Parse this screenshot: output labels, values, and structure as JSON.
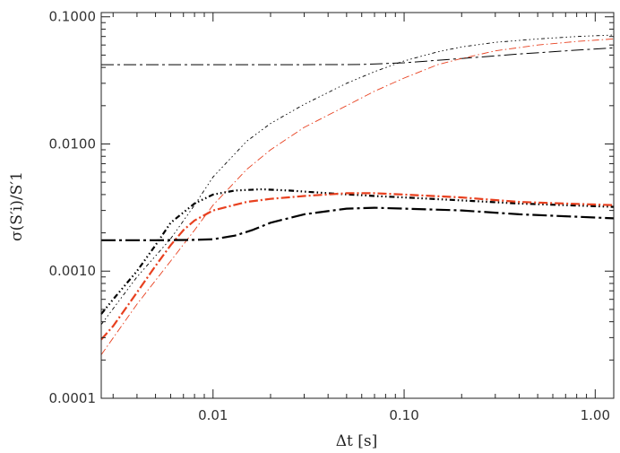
{
  "chart_data": {
    "type": "line",
    "title": "",
    "xlabel": "Δt [s]",
    "ylabel": "σ(S′i)/S′1",
    "xscale": "log",
    "yscale": "log",
    "xlim": [
      0.0026,
      1.25
    ],
    "ylim": [
      0.0001,
      0.108
    ],
    "grid": false,
    "legend": "none",
    "x_ticks": [
      {
        "value": 0.01,
        "label": "0.01"
      },
      {
        "value": 0.1,
        "label": "0.10"
      },
      {
        "value": 1.0,
        "label": "1.00"
      }
    ],
    "y_ticks": [
      {
        "value": 0.0001,
        "label": "0.0001"
      },
      {
        "value": 0.001,
        "label": "0.0010"
      },
      {
        "value": 0.01,
        "label": "0.0100"
      },
      {
        "value": 0.1,
        "label": "0.1000"
      }
    ],
    "series": [
      {
        "color": "#000000",
        "width": 1.0,
        "dash": "14 4 3 4",
        "points": [
          [
            0.0026,
            0.042
          ],
          [
            0.01,
            0.042
          ],
          [
            0.03,
            0.042
          ],
          [
            0.06,
            0.0422
          ],
          [
            0.1,
            0.0435
          ],
          [
            0.2,
            0.047
          ],
          [
            0.4,
            0.051
          ],
          [
            0.7,
            0.054
          ],
          [
            1.25,
            0.057
          ]
        ]
      },
      {
        "color": "#000000",
        "width": 0.9,
        "dash": "4 3 1.5 3 1.5 3 1.5 3",
        "points": [
          [
            0.0026,
            0.00038
          ],
          [
            0.004,
            0.0009
          ],
          [
            0.006,
            0.0018
          ],
          [
            0.008,
            0.0033
          ],
          [
            0.01,
            0.0055
          ],
          [
            0.015,
            0.0105
          ],
          [
            0.02,
            0.0145
          ],
          [
            0.03,
            0.0205
          ],
          [
            0.05,
            0.03
          ],
          [
            0.07,
            0.037
          ],
          [
            0.1,
            0.045
          ],
          [
            0.15,
            0.053
          ],
          [
            0.2,
            0.058
          ],
          [
            0.3,
            0.063
          ],
          [
            0.5,
            0.067
          ],
          [
            0.8,
            0.07
          ],
          [
            1.25,
            0.072
          ]
        ]
      },
      {
        "color": "#e8401f",
        "width": 0.9,
        "dash": "8 3 1.5 3",
        "points": [
          [
            0.0026,
            0.00022
          ],
          [
            0.004,
            0.00055
          ],
          [
            0.006,
            0.0012
          ],
          [
            0.008,
            0.0021
          ],
          [
            0.01,
            0.0033
          ],
          [
            0.015,
            0.0063
          ],
          [
            0.02,
            0.009
          ],
          [
            0.03,
            0.0135
          ],
          [
            0.05,
            0.02
          ],
          [
            0.07,
            0.026
          ],
          [
            0.1,
            0.033
          ],
          [
            0.15,
            0.042
          ],
          [
            0.2,
            0.047
          ],
          [
            0.3,
            0.054
          ],
          [
            0.5,
            0.06
          ],
          [
            0.8,
            0.064
          ],
          [
            1.25,
            0.067
          ]
        ]
      },
      {
        "color": "#000000",
        "width": 2.2,
        "dash": "6 3 1.5 3 1.5 3 1.5 3",
        "points": [
          [
            0.0026,
            0.00046
          ],
          [
            0.003,
            0.0006
          ],
          [
            0.004,
            0.001
          ],
          [
            0.005,
            0.0016
          ],
          [
            0.006,
            0.0024
          ],
          [
            0.008,
            0.0034
          ],
          [
            0.01,
            0.004
          ],
          [
            0.013,
            0.0043
          ],
          [
            0.018,
            0.0044
          ],
          [
            0.025,
            0.0043
          ],
          [
            0.04,
            0.0041
          ],
          [
            0.07,
            0.0039
          ],
          [
            0.1,
            0.0038
          ],
          [
            0.2,
            0.0036
          ],
          [
            0.4,
            0.0034
          ],
          [
            0.7,
            0.0033
          ],
          [
            1.25,
            0.0032
          ]
        ]
      },
      {
        "color": "#e8401f",
        "width": 2.2,
        "dash": "10 3 2 3",
        "points": [
          [
            0.0026,
            0.00029
          ],
          [
            0.003,
            0.00037
          ],
          [
            0.004,
            0.00068
          ],
          [
            0.005,
            0.0011
          ],
          [
            0.006,
            0.0016
          ],
          [
            0.007,
            0.0021
          ],
          [
            0.008,
            0.0025
          ],
          [
            0.01,
            0.003
          ],
          [
            0.015,
            0.0035
          ],
          [
            0.02,
            0.0037
          ],
          [
            0.03,
            0.0039
          ],
          [
            0.05,
            0.0041
          ],
          [
            0.07,
            0.0041
          ],
          [
            0.1,
            0.004
          ],
          [
            0.2,
            0.0038
          ],
          [
            0.4,
            0.0035
          ],
          [
            0.7,
            0.0034
          ],
          [
            1.25,
            0.0033
          ]
        ]
      },
      {
        "color": "#000000",
        "width": 2.2,
        "dash": "16 4 3 4",
        "points": [
          [
            0.0026,
            0.00175
          ],
          [
            0.005,
            0.00175
          ],
          [
            0.008,
            0.00176
          ],
          [
            0.01,
            0.00178
          ],
          [
            0.013,
            0.0019
          ],
          [
            0.016,
            0.0021
          ],
          [
            0.02,
            0.0024
          ],
          [
            0.03,
            0.0028
          ],
          [
            0.05,
            0.0031
          ],
          [
            0.07,
            0.00315
          ],
          [
            0.1,
            0.0031
          ],
          [
            0.2,
            0.003
          ],
          [
            0.4,
            0.0028
          ],
          [
            0.7,
            0.0027
          ],
          [
            1.25,
            0.0026
          ]
        ]
      }
    ]
  }
}
